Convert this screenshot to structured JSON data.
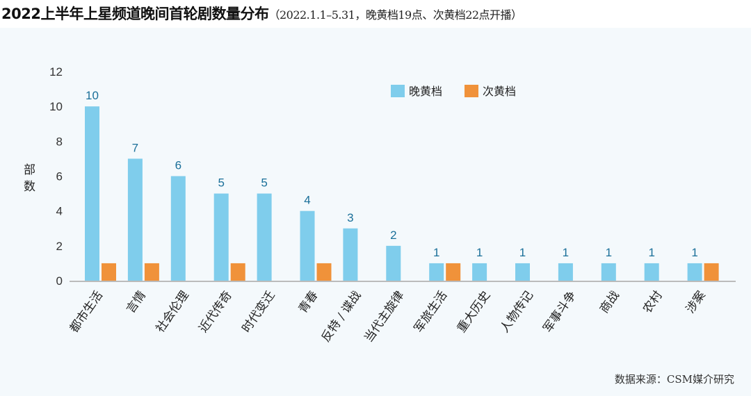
{
  "chart_data": {
    "type": "bar",
    "title": "2022上半年上星频道晚间首轮剧数量分布",
    "subtitle": "（2022.1.1–5.31，晚黄档19点、次黄档22点开播）",
    "ylabel": "部数",
    "xlabel": "",
    "ylim": [
      0,
      12
    ],
    "yticks": [
      0,
      2,
      4,
      6,
      8,
      10,
      12
    ],
    "categories": [
      "都市生活",
      "言情",
      "社会伦理",
      "近代传奇",
      "时代变迁",
      "青春",
      "反特 / 谍战",
      "当代主旋律",
      "军旅生活",
      "重大历史",
      "人物传记",
      "军事斗争",
      "商战",
      "农村",
      "涉案"
    ],
    "series": [
      {
        "name": "晚黄档",
        "color": "#7fcdec",
        "values": [
          10,
          7,
          6,
          5,
          5,
          4,
          3,
          2,
          1,
          1,
          1,
          1,
          1,
          1,
          1
        ],
        "show_labels": true
      },
      {
        "name": "次黄档",
        "color": "#f0923a",
        "values": [
          1,
          1,
          0,
          1,
          0,
          1,
          0,
          0,
          1,
          0,
          0,
          0,
          0,
          0,
          1
        ],
        "show_labels": false
      }
    ],
    "legend_position": "top-right",
    "grid": false,
    "source": "数据来源：CSM媒介研究"
  }
}
